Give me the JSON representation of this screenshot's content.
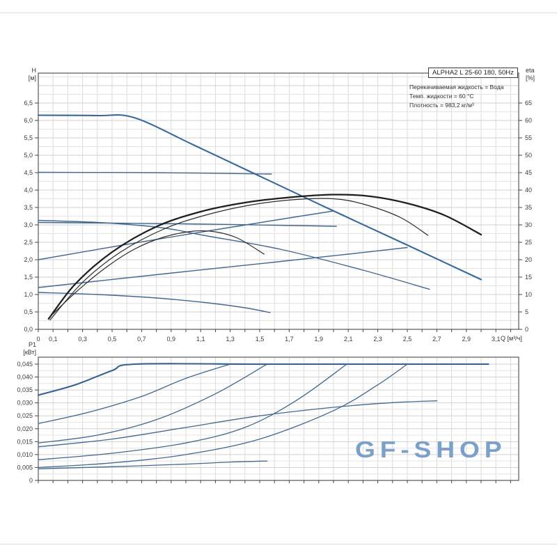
{
  "header": {
    "title_box": "ALPHA2 L 25-60 180, 50Hz",
    "info_lines": [
      "Перекачиваемая жидкость = Вода",
      "Темп. жидкости = 60 °C",
      "Плотность = 983,2 кг/м³"
    ]
  },
  "watermark": {
    "text": "GF-SHOP",
    "color": "#7ba0c9"
  },
  "colors": {
    "curve_blue": "#41688e",
    "curve_blue_bold": "#35618f",
    "curve_black": "#1e1e1e",
    "grid_minor": "#e4e4e4",
    "grid_major": "#d2d2d2",
    "grid_vertical": "#dbdbdb",
    "frame": "#565656",
    "tick_text": "#3a3a3a"
  },
  "chart_data": [
    {
      "name": "hq-performance-chart",
      "type": "line",
      "title": "ALPHA2 L 25-60 180, 50Hz",
      "x_axis": {
        "label": "Q [м³/ч]",
        "min": 0,
        "max": 3.25,
        "grid": true,
        "ticks": [
          {
            "v": 0,
            "t": "0"
          },
          {
            "v": 0.1,
            "t": "0,1"
          },
          {
            "v": 0.3,
            "t": "0,3"
          },
          {
            "v": 0.5,
            "t": "0,5"
          },
          {
            "v": 0.7,
            "t": "0,7"
          },
          {
            "v": 0.9,
            "t": "0,9"
          },
          {
            "v": 1.1,
            "t": "1,1"
          },
          {
            "v": 1.3,
            "t": "1,3"
          },
          {
            "v": 1.5,
            "t": "1,5"
          },
          {
            "v": 1.7,
            "t": "1,7"
          },
          {
            "v": 1.9,
            "t": "1,9"
          },
          {
            "v": 2.1,
            "t": "2,1"
          },
          {
            "v": 2.3,
            "t": "2,3"
          },
          {
            "v": 2.5,
            "t": "2,5"
          },
          {
            "v": 2.7,
            "t": "2,7"
          },
          {
            "v": 2.9,
            "t": "2,9"
          },
          {
            "v": 3.1,
            "t": "3,1"
          }
        ]
      },
      "y_axis_left": {
        "label": "H",
        "unit": "[м]",
        "min": 0,
        "max": 7.36,
        "ticks": [
          {
            "v": 0,
            "t": "0,0"
          },
          {
            "v": 0.5,
            "t": "0,5"
          },
          {
            "v": 1,
            "t": "1,0"
          },
          {
            "v": 1.5,
            "t": "1,5"
          },
          {
            "v": 2,
            "t": "2,0"
          },
          {
            "v": 2.5,
            "t": "2,5"
          },
          {
            "v": 3,
            "t": "3,0"
          },
          {
            "v": 3.5,
            "t": "3,5"
          },
          {
            "v": 4,
            "t": "4,0"
          },
          {
            "v": 4.5,
            "t": "4,5"
          },
          {
            "v": 5,
            "t": "5,0"
          },
          {
            "v": 5.5,
            "t": "5,5"
          },
          {
            "v": 6,
            "t": "6,0"
          },
          {
            "v": 6.5,
            "t": "6,5"
          }
        ]
      },
      "y_axis_right": {
        "label": "eta",
        "unit": "[%]",
        "min": 0,
        "max": 73.6,
        "ticks": [
          {
            "v": 0,
            "t": "0"
          },
          {
            "v": 5,
            "t": "5"
          },
          {
            "v": 10,
            "t": "10"
          },
          {
            "v": 15,
            "t": "15"
          },
          {
            "v": 20,
            "t": "20"
          },
          {
            "v": 25,
            "t": "25"
          },
          {
            "v": 30,
            "t": "30"
          },
          {
            "v": 35,
            "t": "35"
          },
          {
            "v": 40,
            "t": "40"
          },
          {
            "v": 45,
            "t": "45"
          },
          {
            "v": 50,
            "t": "50"
          },
          {
            "v": 55,
            "t": "55"
          },
          {
            "v": 60,
            "t": "60"
          },
          {
            "v": 65,
            "t": "65"
          }
        ]
      },
      "series": [
        {
          "name": "speed-3-hq-curve",
          "color": "#38689c",
          "width": 2.1,
          "points": [
            [
              0,
              6.15
            ],
            [
              0.4,
              6.14
            ],
            [
              0.65,
              6.08
            ],
            [
              1.05,
              5.3
            ],
            [
              1.45,
              4.5
            ],
            [
              1.95,
              3.5
            ],
            [
              2.5,
              2.42
            ],
            [
              3.0,
              1.43
            ]
          ]
        },
        {
          "name": "const-pressure-4.5-curve",
          "color": "#41688e",
          "width": 1.4,
          "points": [
            [
              0,
              4.51
            ],
            [
              0.8,
              4.5
            ],
            [
              1.58,
              4.46
            ]
          ]
        },
        {
          "name": "const-pressure-3.0-curve",
          "color": "#41688e",
          "width": 1.4,
          "points": [
            [
              0,
              3.07
            ],
            [
              1.0,
              3.03
            ],
            [
              2.02,
              2.96
            ]
          ]
        },
        {
          "name": "speed-2-hq-curve",
          "color": "#41688e",
          "width": 1.4,
          "points": [
            [
              0,
              3.13
            ],
            [
              0.45,
              3.06
            ],
            [
              0.85,
              2.91
            ],
            [
              1.12,
              2.7
            ],
            [
              1.64,
              2.3
            ],
            [
              2.2,
              1.7
            ],
            [
              2.65,
              1.15
            ]
          ]
        },
        {
          "name": "prop-pressure-2-curve",
          "color": "#41688e",
          "width": 1.4,
          "points": [
            [
              0,
              2.0
            ],
            [
              0.6,
              2.44
            ],
            [
              1.2,
              2.86
            ],
            [
              1.7,
              3.2
            ],
            [
              2.0,
              3.4
            ]
          ]
        },
        {
          "name": "prop-pressure-1-curve",
          "color": "#41688e",
          "width": 1.4,
          "points": [
            [
              0,
              1.2
            ],
            [
              0.8,
              1.57
            ],
            [
              1.6,
              1.93
            ],
            [
              2.1,
              2.16
            ],
            [
              2.5,
              2.35
            ]
          ]
        },
        {
          "name": "speed-1-hq-curve",
          "color": "#41688e",
          "width": 1.4,
          "points": [
            [
              0,
              1.06
            ],
            [
              0.4,
              1.0
            ],
            [
              0.8,
              0.9
            ],
            [
              1.15,
              0.76
            ],
            [
              1.4,
              0.62
            ],
            [
              1.57,
              0.48
            ]
          ]
        },
        {
          "name": "eta-speed-3-curve",
          "color": "#1e1e1e",
          "width": 2.3,
          "points": [
            [
              0.07,
              0.3
            ],
            [
              0.25,
              1.3
            ],
            [
              0.5,
              2.22
            ],
            [
              0.8,
              2.95
            ],
            [
              1.1,
              3.38
            ],
            [
              1.4,
              3.64
            ],
            [
              1.7,
              3.79
            ],
            [
              2.0,
              3.87
            ],
            [
              2.25,
              3.82
            ],
            [
              2.5,
              3.62
            ],
            [
              2.75,
              3.28
            ],
            [
              3.0,
              2.72
            ]
          ]
        },
        {
          "name": "eta-speed-2-curve",
          "color": "#2a2a2a",
          "width": 1.2,
          "points": [
            [
              0.08,
              0.27
            ],
            [
              0.3,
              1.35
            ],
            [
              0.55,
              2.2
            ],
            [
              0.85,
              2.88
            ],
            [
              1.15,
              3.3
            ],
            [
              1.45,
              3.58
            ],
            [
              1.75,
              3.73
            ],
            [
              2.0,
              3.75
            ],
            [
              2.2,
              3.6
            ],
            [
              2.45,
              3.22
            ],
            [
              2.64,
              2.7
            ]
          ]
        },
        {
          "name": "eta-speed-1-curve",
          "color": "#2a2a2a",
          "width": 1.2,
          "points": [
            [
              0.07,
              0.32
            ],
            [
              0.25,
              1.05
            ],
            [
              0.45,
              1.75
            ],
            [
              0.65,
              2.3
            ],
            [
              0.85,
              2.65
            ],
            [
              1.05,
              2.82
            ],
            [
              1.2,
              2.8
            ],
            [
              1.35,
              2.62
            ],
            [
              1.53,
              2.16
            ]
          ]
        }
      ]
    },
    {
      "name": "power-chart",
      "type": "line",
      "y_axis_left": {
        "label": "P1",
        "unit": "[кВт]",
        "min": 0,
        "max": 0.0477,
        "ticks": [
          {
            "v": 0,
            "t": "0"
          },
          {
            "v": 0.005,
            "t": "0,005"
          },
          {
            "v": 0.01,
            "t": "0,010"
          },
          {
            "v": 0.015,
            "t": "0,015"
          },
          {
            "v": 0.02,
            "t": "0,020"
          },
          {
            "v": 0.025,
            "t": "0,025"
          },
          {
            "v": 0.03,
            "t": "0,030"
          },
          {
            "v": 0.035,
            "t": "0,035"
          },
          {
            "v": 0.04,
            "t": "0,040"
          },
          {
            "v": 0.045,
            "t": "0,045"
          }
        ]
      },
      "series": [
        {
          "name": "p1-speed-3-curve",
          "color": "#35618f",
          "width": 2.1,
          "points": [
            [
              0,
              0.033
            ],
            [
              0.25,
              0.037
            ],
            [
              0.5,
              0.0425
            ],
            [
              0.66,
              0.045
            ],
            [
              1.5,
              0.045
            ],
            [
              2.3,
              0.045
            ],
            [
              3.05,
              0.045
            ]
          ]
        },
        {
          "name": "p1-const-pressure-4.5-curve",
          "color": "#41688e",
          "width": 1.3,
          "points": [
            [
              0,
              0.022
            ],
            [
              0.35,
              0.0265
            ],
            [
              0.7,
              0.0325
            ],
            [
              1.0,
              0.0395
            ],
            [
              1.3,
              0.045
            ]
          ]
        },
        {
          "name": "p1-prop-pressure-2-curve",
          "color": "#41688e",
          "width": 1.3,
          "points": [
            [
              0,
              0.0145
            ],
            [
              0.4,
              0.0175
            ],
            [
              0.8,
              0.0235
            ],
            [
              1.2,
              0.0335
            ],
            [
              1.55,
              0.045
            ]
          ]
        },
        {
          "name": "p1-speed-2-curve",
          "color": "#41688e",
          "width": 1.3,
          "points": [
            [
              0,
              0.013
            ],
            [
              0.5,
              0.016
            ],
            [
              1.0,
              0.0205
            ],
            [
              1.5,
              0.025
            ],
            [
              2.0,
              0.0283
            ],
            [
              2.4,
              0.0301
            ],
            [
              2.7,
              0.0308
            ]
          ]
        },
        {
          "name": "p1-const-pressure-3.0-curve",
          "color": "#41688e",
          "width": 1.3,
          "points": [
            [
              0,
              0.008
            ],
            [
              0.5,
              0.0105
            ],
            [
              1.0,
              0.0145
            ],
            [
              1.4,
              0.0205
            ],
            [
              1.75,
              0.031
            ],
            [
              2.09,
              0.045
            ]
          ]
        },
        {
          "name": "p1-prop-pressure-1-curve",
          "color": "#41688e",
          "width": 1.3,
          "points": [
            [
              0,
              0.005
            ],
            [
              0.5,
              0.0068
            ],
            [
              1.0,
              0.01
            ],
            [
              1.5,
              0.016
            ],
            [
              2.0,
              0.027
            ],
            [
              2.3,
              0.037
            ],
            [
              2.5,
              0.045
            ]
          ]
        },
        {
          "name": "p1-speed-1-curve",
          "color": "#41688e",
          "width": 1.3,
          "points": [
            [
              0,
              0.0045
            ],
            [
              0.5,
              0.0053
            ],
            [
              1.0,
              0.0063
            ],
            [
              1.3,
              0.0071
            ],
            [
              1.55,
              0.0075
            ]
          ]
        }
      ]
    }
  ]
}
